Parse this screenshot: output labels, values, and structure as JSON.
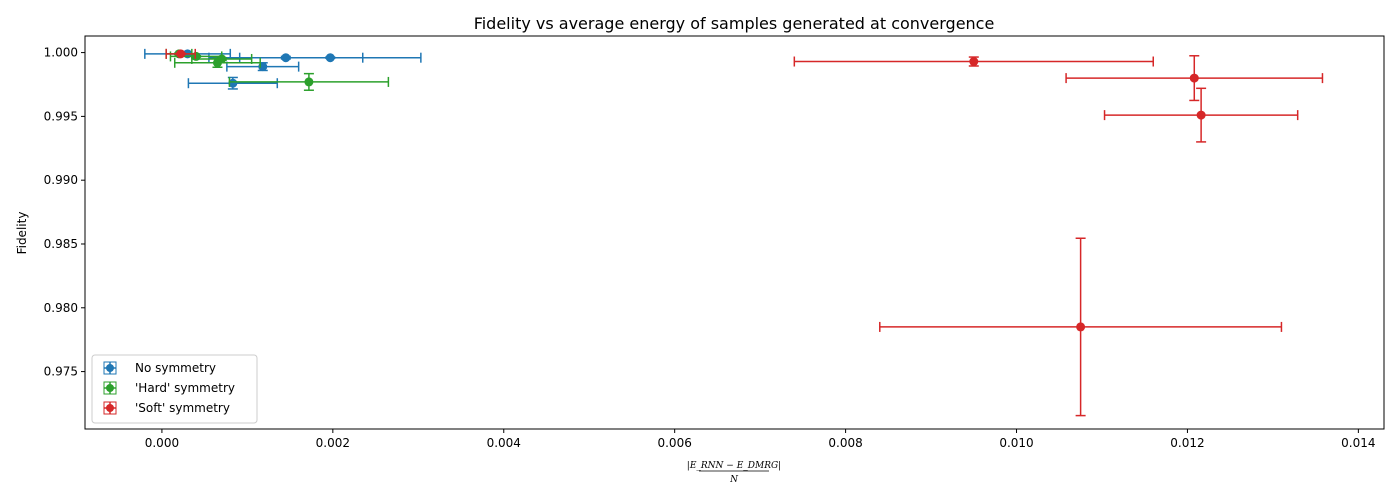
{
  "chart_data": {
    "type": "scatter",
    "title": "Fidelity vs average energy of samples generated at convergence",
    "xlabel": "|E_RNN − E_DMRG|",
    "xlabel_denominator": "N",
    "ylabel": "Fidelity",
    "xlim": [
      -0.0009,
      0.0143
    ],
    "ylim": [
      0.9705,
      1.0013
    ],
    "x_ticks": [
      0.0,
      0.002,
      0.004,
      0.006,
      0.008,
      0.01,
      0.012,
      0.014
    ],
    "x_tick_labels": [
      "0.000",
      "0.002",
      "0.004",
      "0.006",
      "0.008",
      "0.010",
      "0.012",
      "0.014"
    ],
    "y_ticks": [
      0.975,
      0.98,
      0.985,
      0.99,
      0.995,
      1.0
    ],
    "y_tick_labels": [
      "0.975",
      "0.980",
      "0.985",
      "0.990",
      "0.995",
      "1.000"
    ],
    "grid": false,
    "legend_position": "bottom-left",
    "series": [
      {
        "name": "No symmetry",
        "color": "#1f77b4",
        "points": [
          {
            "x": 0.0003,
            "y": 0.9999,
            "xerr": 0.0005,
            "yerr": 5e-05
          },
          {
            "x": 0.00083,
            "y": 0.9976,
            "xerr": 0.00052,
            "yerr": 0.00045
          },
          {
            "x": 0.00118,
            "y": 0.9989,
            "xerr": 0.00042,
            "yerr": 0.0003
          },
          {
            "x": 0.00145,
            "y": 0.9996,
            "xerr": 0.0009,
            "yerr": 0.0001
          },
          {
            "x": 0.00197,
            "y": 0.9996,
            "xerr": 0.00106,
            "yerr": 5e-05
          }
        ]
      },
      {
        "name": "'Hard' symmetry",
        "color": "#2ca02c",
        "points": [
          {
            "x": 0.0002,
            "y": 0.9999,
            "xerr": 0.00015,
            "yerr": 5e-05
          },
          {
            "x": 0.0004,
            "y": 0.9997,
            "xerr": 0.0003,
            "yerr": 5e-05
          },
          {
            "x": 0.00065,
            "y": 0.9992,
            "xerr": 0.0005,
            "yerr": 0.00035
          },
          {
            "x": 0.0007,
            "y": 0.9995,
            "xerr": 0.00035,
            "yerr": 0.0001
          },
          {
            "x": 0.00172,
            "y": 0.9977,
            "xerr": 0.00093,
            "yerr": 0.00065
          }
        ]
      },
      {
        "name": "'Soft' symmetry",
        "color": "#d62728",
        "points": [
          {
            "x": 0.00022,
            "y": 0.9999,
            "xerr": 0.00017,
            "yerr": 5e-05
          },
          {
            "x": 0.0095,
            "y": 0.9993,
            "xerr": 0.0021,
            "yerr": 0.00035
          },
          {
            "x": 0.01208,
            "y": 0.998,
            "xerr": 0.0015,
            "yerr": 0.00175
          },
          {
            "x": 0.01216,
            "y": 0.9951,
            "xerr": 0.00113,
            "yerr": 0.0021
          },
          {
            "x": 0.01075,
            "y": 0.9785,
            "xerr": 0.00235,
            "yerr": 0.00695
          }
        ]
      }
    ]
  }
}
